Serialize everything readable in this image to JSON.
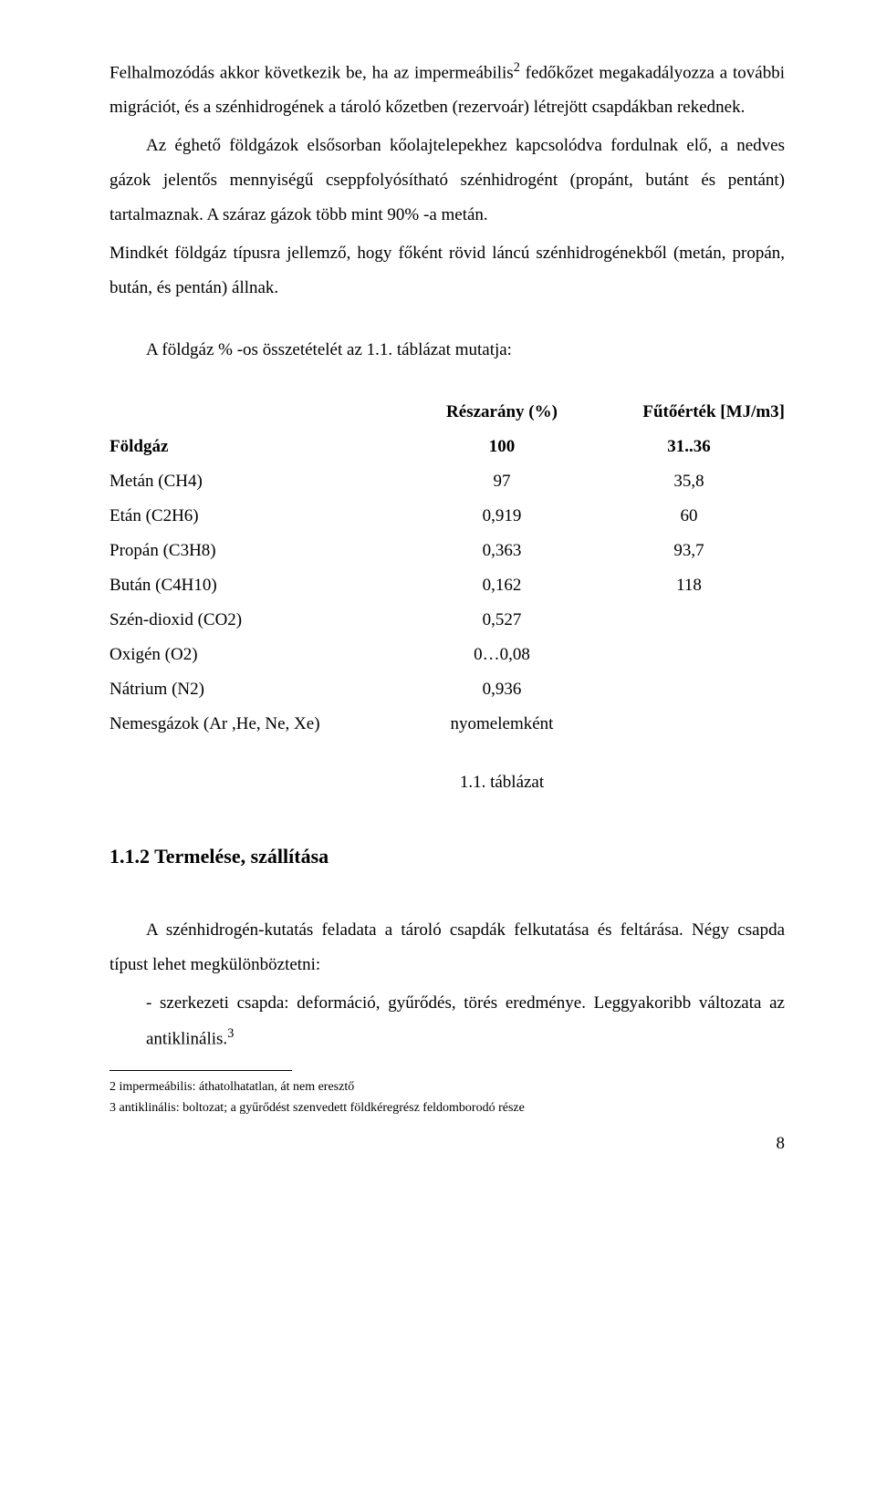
{
  "para1": {
    "t1": "Felhalmozódás akkor következik be, ha az impermeábilis",
    "sup": "2",
    "t2": " fedőkőzet megakadályozza a további migrációt, és a szénhidrogének a tároló kőzetben (rezervoár) létrejött csapdákban rekednek."
  },
  "para2": {
    "t1": "Az éghető földgázok elsősorban kőolajtelepekhez kapcsolódva fordulnak elő, a nedves gázok jelentős mennyiségű cseppfolyósítható szénhidrogént (propánt, butánt és pentánt) tartalmaznak. A száraz gázok több mint 90% -a metán."
  },
  "para3": {
    "t1": "Mindkét földgáz típusra jellemző, hogy főként rövid láncú szénhidrogénekből (metán, propán, bután, és pentán) állnak."
  },
  "para4": {
    "t1": "A földgáz % -os összetételét az 1.1. táblázat mutatja:"
  },
  "table": {
    "hdr_share": "Részarány (%)",
    "hdr_heat": "Fűtőérték [MJ/m3]",
    "rows": [
      {
        "name": "Földgáz",
        "share": "100",
        "heat": "31..36",
        "bold": true
      },
      {
        "name": "Metán (CH4)",
        "share": "97",
        "heat": "35,8"
      },
      {
        "name": "Etán (C2H6)",
        "share": "0,919",
        "heat": "60"
      },
      {
        "name": "Propán (C3H8)",
        "share": "0,363",
        "heat": "93,7"
      },
      {
        "name": "Bután (C4H10)",
        "share": "0,162",
        "heat": "118"
      },
      {
        "name": "Szén-dioxid (CO2)",
        "share": "0,527",
        "heat": ""
      },
      {
        "name": "Oxigén (O2)",
        "share": "0…0,08",
        "heat": ""
      },
      {
        "name": "Nátrium (N2)",
        "share": "0,936",
        "heat": ""
      },
      {
        "name": "Nemesgázok (Ar ,He, Ne, Xe)",
        "share": "nyomelemként",
        "heat": ""
      }
    ],
    "caption": "1.1. táblázat"
  },
  "heading": "1.1.2 Termelése, szállítása",
  "para5": {
    "t1": "A szénhidrogén-kutatás feladata a tároló csapdák felkutatása és feltárása. Négy csapda típust lehet megkülönböztetni:"
  },
  "bullet1": {
    "t1": "- szerkezeti csapda: deformáció, gyűrődés, törés eredménye. Leggyakoribb változata az antiklinális.",
    "sup": "3"
  },
  "footnotes": {
    "f2": "2 impermeábilis: áthatolhatatlan, át nem eresztő",
    "f3": "3 antiklinális: boltozat; a gyűrődést szenvedett földkéregrész feldomborodó része"
  },
  "pagenum": "8"
}
